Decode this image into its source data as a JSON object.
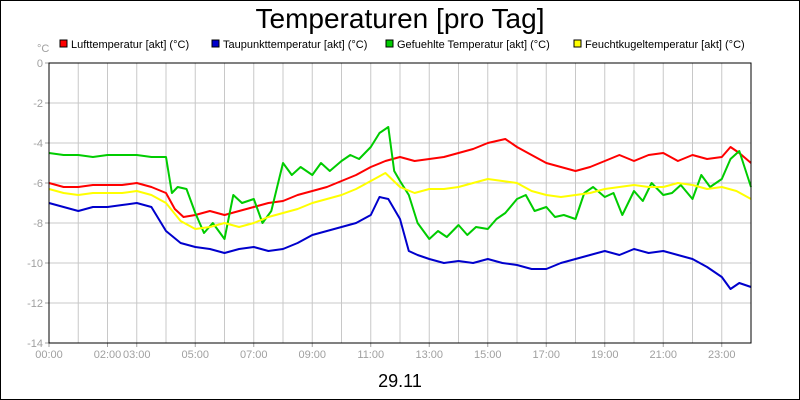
{
  "chart_data": {
    "type": "line",
    "title": "Temperaturen [pro Tag]",
    "date_label": "29.11",
    "y_unit": "°C",
    "ylim": [
      -14,
      0
    ],
    "y_ticks": [
      "0",
      "-2",
      "-4",
      "-6",
      "-8",
      "-10",
      "-12",
      "-14"
    ],
    "y_tick_values": [
      0,
      -2,
      -4,
      -6,
      -8,
      -10,
      -12,
      -14
    ],
    "xlim": [
      0,
      24
    ],
    "x_ticks": [
      "00:00",
      "02:00",
      "03:00",
      "05:00",
      "07:00",
      "09:00",
      "11:00",
      "13:00",
      "15:00",
      "17:00",
      "19:00",
      "21:00",
      "23:00"
    ],
    "x_tick_values": [
      0,
      2,
      3,
      5,
      7,
      9,
      11,
      13,
      15,
      17,
      19,
      21,
      23
    ],
    "grid": true,
    "legend_position": "top",
    "series": [
      {
        "name": "Lufttemperatur [akt] (°C)",
        "color": "#ff0000",
        "x": [
          0,
          0.5,
          1,
          1.5,
          2,
          2.5,
          3,
          3.5,
          4,
          4.3,
          4.6,
          5,
          5.5,
          6,
          6.5,
          7,
          7.5,
          8,
          8.5,
          9,
          9.5,
          10,
          10.5,
          11,
          11.5,
          12,
          12.5,
          13,
          13.5,
          14,
          14.5,
          15,
          15.3,
          15.6,
          16,
          16.5,
          17,
          17.5,
          18,
          18.5,
          19,
          19.5,
          20,
          20.5,
          21,
          21.5,
          22,
          22.5,
          23,
          23.3,
          23.6,
          24
        ],
        "y": [
          -6.0,
          -6.2,
          -6.2,
          -6.1,
          -6.1,
          -6.1,
          -6.0,
          -6.2,
          -6.5,
          -7.3,
          -7.7,
          -7.6,
          -7.4,
          -7.6,
          -7.4,
          -7.2,
          -7.0,
          -6.9,
          -6.6,
          -6.4,
          -6.2,
          -5.9,
          -5.6,
          -5.2,
          -4.9,
          -4.7,
          -4.9,
          -4.8,
          -4.7,
          -4.5,
          -4.3,
          -4.0,
          -3.9,
          -3.8,
          -4.2,
          -4.6,
          -5.0,
          -5.2,
          -5.4,
          -5.2,
          -4.9,
          -4.6,
          -4.9,
          -4.6,
          -4.5,
          -4.9,
          -4.6,
          -4.8,
          -4.7,
          -4.2,
          -4.5,
          -5.0
        ]
      },
      {
        "name": "Taupunkttemperatur [akt] (°C)",
        "color": "#0000cc",
        "x": [
          0,
          0.5,
          1,
          1.5,
          2,
          2.5,
          3,
          3.5,
          4,
          4.5,
          5,
          5.5,
          6,
          6.5,
          7,
          7.5,
          8,
          8.5,
          9,
          9.5,
          10,
          10.5,
          11,
          11.3,
          11.6,
          12,
          12.3,
          12.6,
          13,
          13.5,
          14,
          14.5,
          15,
          15.5,
          16,
          16.5,
          17,
          17.5,
          18,
          18.5,
          19,
          19.5,
          20,
          20.5,
          21,
          21.5,
          22,
          22.5,
          23,
          23.3,
          23.6,
          24
        ],
        "y": [
          -7.0,
          -7.2,
          -7.4,
          -7.2,
          -7.2,
          -7.1,
          -7.0,
          -7.2,
          -8.4,
          -9.0,
          -9.2,
          -9.3,
          -9.5,
          -9.3,
          -9.2,
          -9.4,
          -9.3,
          -9.0,
          -8.6,
          -8.4,
          -8.2,
          -8.0,
          -7.6,
          -6.7,
          -6.8,
          -7.8,
          -9.4,
          -9.6,
          -9.8,
          -10.0,
          -9.9,
          -10.0,
          -9.8,
          -10.0,
          -10.1,
          -10.3,
          -10.3,
          -10.0,
          -9.8,
          -9.6,
          -9.4,
          -9.6,
          -9.3,
          -9.5,
          -9.4,
          -9.6,
          -9.8,
          -10.2,
          -10.7,
          -11.3,
          -11.0,
          -11.2
        ]
      },
      {
        "name": "Gefuehlte Temperatur [akt] (°C)",
        "color": "#00cc00",
        "x": [
          0,
          0.5,
          1,
          1.5,
          2,
          2.5,
          3,
          3.5,
          4,
          4.2,
          4.4,
          4.7,
          5,
          5.3,
          5.6,
          6,
          6.3,
          6.6,
          7,
          7.3,
          7.6,
          8,
          8.3,
          8.6,
          9,
          9.3,
          9.6,
          10,
          10.3,
          10.6,
          11,
          11.3,
          11.6,
          11.8,
          12,
          12.3,
          12.6,
          13,
          13.3,
          13.6,
          14,
          14.3,
          14.6,
          15,
          15.3,
          15.6,
          16,
          16.3,
          16.6,
          17,
          17.3,
          17.6,
          18,
          18.3,
          18.6,
          19,
          19.3,
          19.6,
          20,
          20.3,
          20.6,
          21,
          21.3,
          21.6,
          22,
          22.3,
          22.6,
          23,
          23.3,
          23.6,
          24
        ],
        "y": [
          -4.5,
          -4.6,
          -4.6,
          -4.7,
          -4.6,
          -4.6,
          -4.6,
          -4.7,
          -4.7,
          -6.5,
          -6.2,
          -6.3,
          -7.5,
          -8.5,
          -8.0,
          -8.8,
          -6.6,
          -7.0,
          -6.8,
          -8.0,
          -7.4,
          -5.0,
          -5.6,
          -5.2,
          -5.6,
          -5.0,
          -5.4,
          -4.9,
          -4.6,
          -4.8,
          -4.2,
          -3.5,
          -3.2,
          -5.4,
          -5.9,
          -6.6,
          -8.0,
          -8.8,
          -8.4,
          -8.7,
          -8.1,
          -8.6,
          -8.2,
          -8.3,
          -7.8,
          -7.5,
          -6.8,
          -6.6,
          -7.4,
          -7.2,
          -7.7,
          -7.6,
          -7.8,
          -6.5,
          -6.2,
          -6.7,
          -6.5,
          -7.6,
          -6.4,
          -6.9,
          -6.0,
          -6.6,
          -6.5,
          -6.1,
          -6.8,
          -5.6,
          -6.2,
          -5.8,
          -4.8,
          -4.4,
          -6.2
        ]
      },
      {
        "name": "Feuchtkugeltemperatur [akt] (°C)",
        "color": "#ffff00",
        "x": [
          0,
          0.5,
          1,
          1.5,
          2,
          2.5,
          3,
          3.5,
          4,
          4.5,
          5,
          5.5,
          6,
          6.5,
          7,
          7.5,
          8,
          8.5,
          9,
          9.5,
          10,
          10.5,
          11,
          11.5,
          12,
          12.5,
          13,
          13.5,
          14,
          14.5,
          15,
          15.5,
          16,
          16.5,
          17,
          17.5,
          18,
          18.5,
          19,
          19.5,
          20,
          20.5,
          21,
          21.5,
          22,
          22.5,
          23,
          23.5,
          24
        ],
        "y": [
          -6.3,
          -6.5,
          -6.6,
          -6.5,
          -6.5,
          -6.5,
          -6.4,
          -6.6,
          -7.0,
          -7.9,
          -8.3,
          -8.2,
          -8.0,
          -8.2,
          -8.0,
          -7.7,
          -7.5,
          -7.3,
          -7.0,
          -6.8,
          -6.6,
          -6.3,
          -5.9,
          -5.5,
          -6.2,
          -6.5,
          -6.3,
          -6.3,
          -6.2,
          -6.0,
          -5.8,
          -5.9,
          -6.0,
          -6.4,
          -6.6,
          -6.7,
          -6.6,
          -6.5,
          -6.3,
          -6.2,
          -6.1,
          -6.2,
          -6.2,
          -6.0,
          -6.1,
          -6.3,
          -6.2,
          -6.4,
          -6.8
        ]
      }
    ]
  }
}
